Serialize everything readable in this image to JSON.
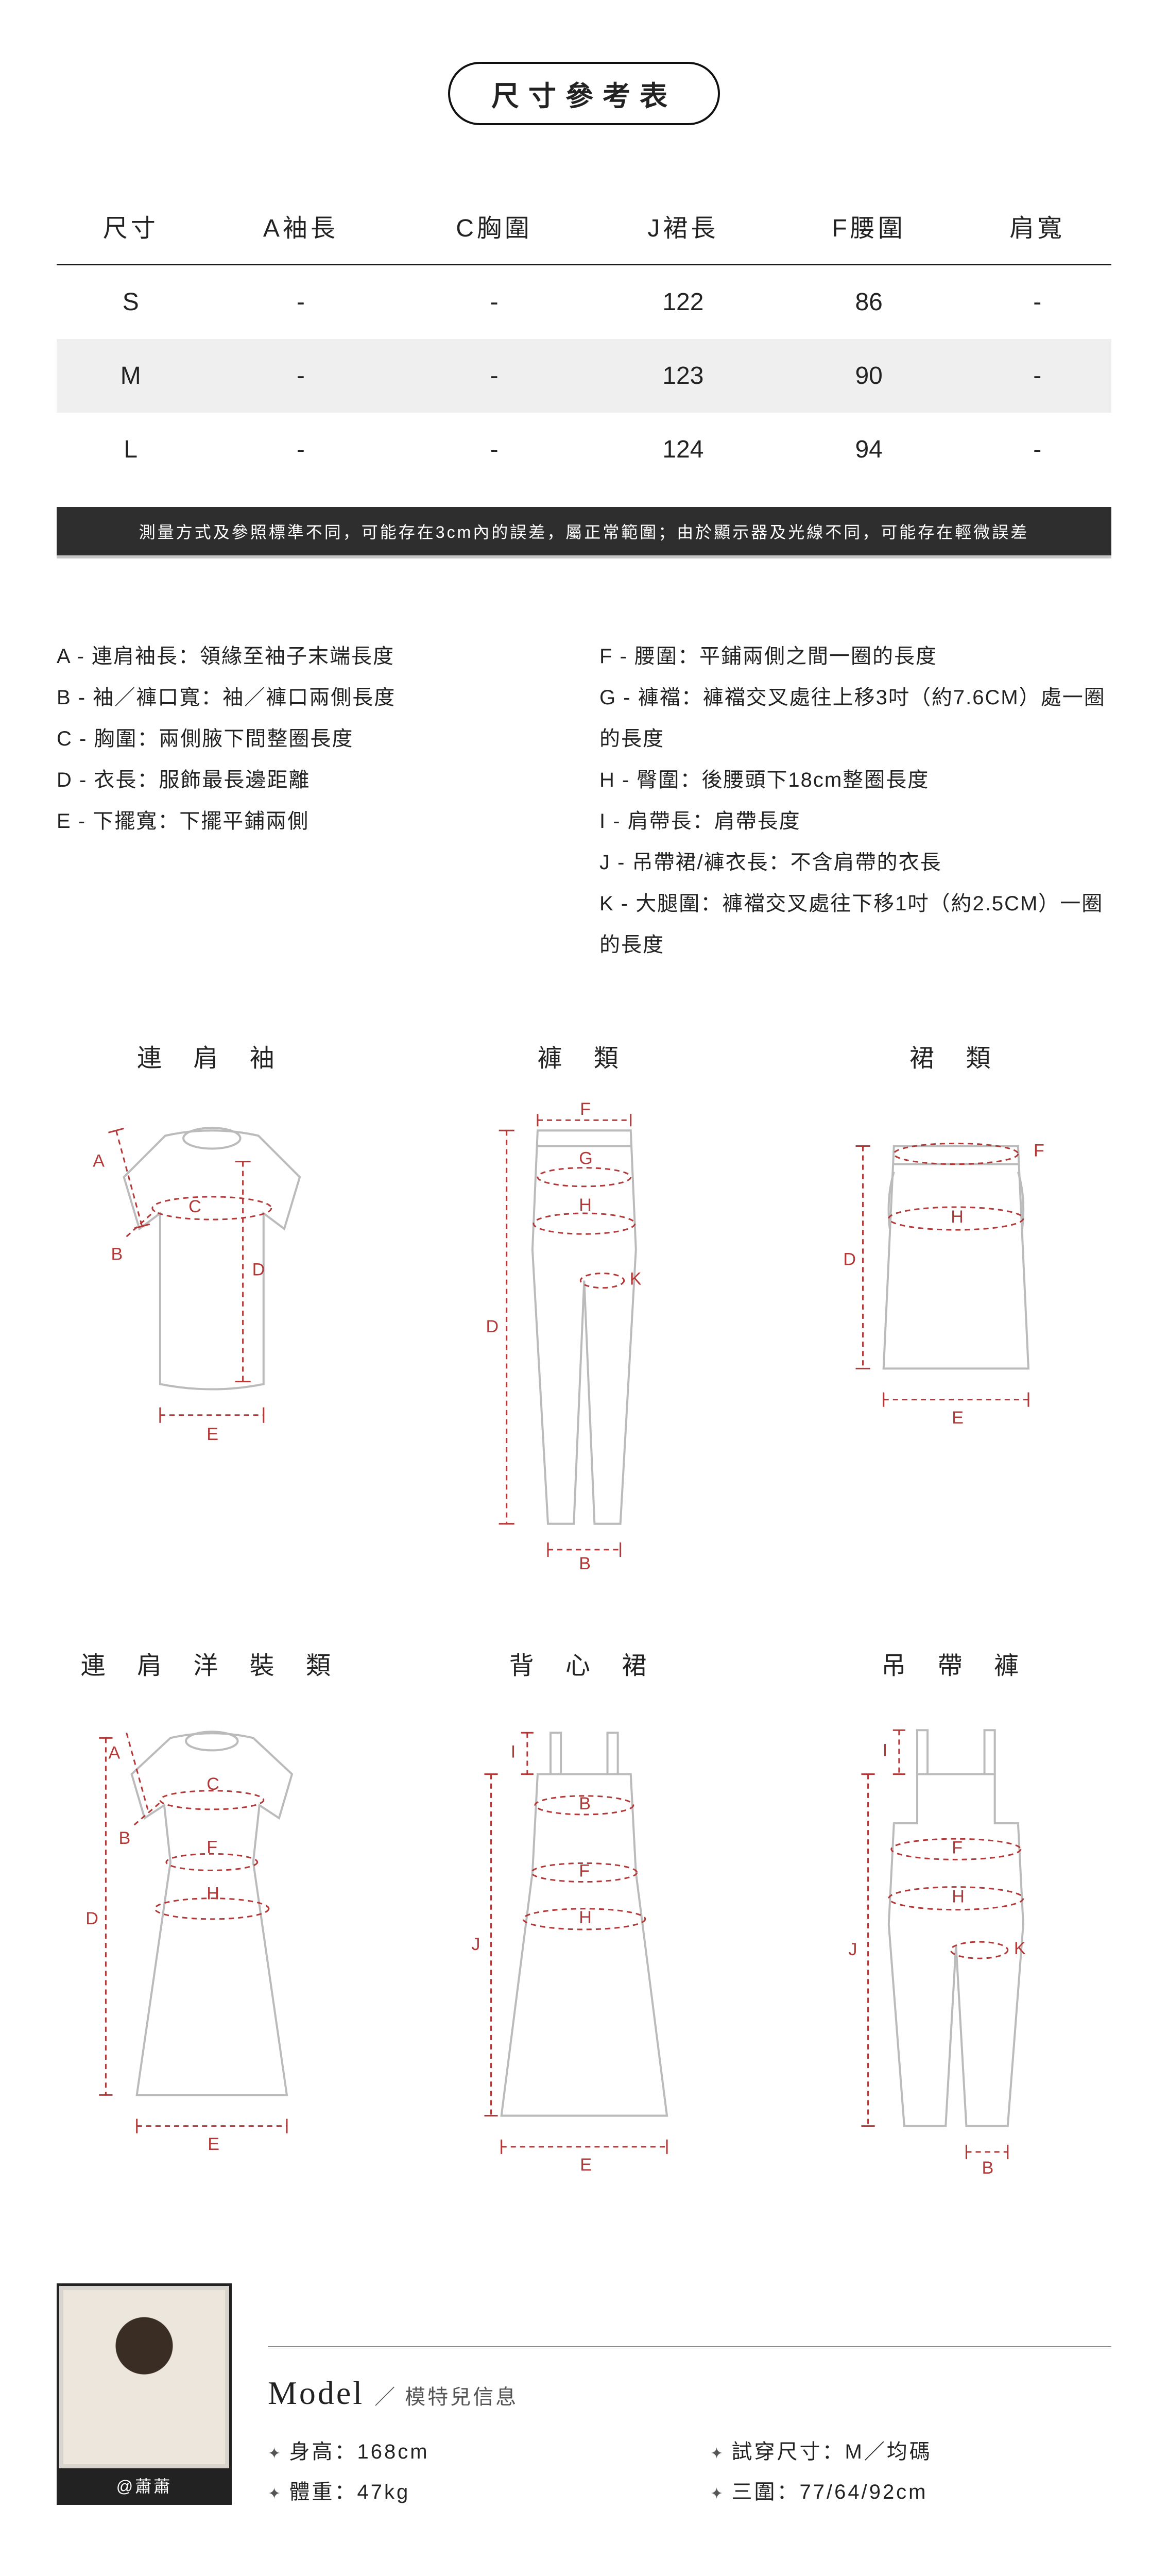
{
  "title": "尺寸參考表",
  "size_table": {
    "columns": [
      "尺寸",
      "A袖長",
      "C胸圍",
      "J裙長",
      "F腰圍",
      "肩寬"
    ],
    "rows": [
      {
        "cells": [
          "S",
          "-",
          "-",
          "122",
          "86",
          "-"
        ],
        "band": false
      },
      {
        "cells": [
          "M",
          "-",
          "-",
          "123",
          "90",
          "-"
        ],
        "band": true
      },
      {
        "cells": [
          "L",
          "-",
          "-",
          "124",
          "94",
          "-"
        ],
        "band": false
      }
    ]
  },
  "disclaimer": "測量方式及參照標準不同，可能存在3cm內的誤差，屬正常範圍；由於顯示器及光線不同，可能存在輕微誤差",
  "legend_left": [
    "A - 連肩袖長：領緣至袖子末端長度",
    "B - 袖／褲口寬：袖／褲口兩側長度",
    "C - 胸圍：兩側腋下間整圈長度",
    "D - 衣長：服飾最長邊距離",
    "E - 下擺寬：下擺平鋪兩側"
  ],
  "legend_right": [
    "F - 腰圍：平鋪兩側之間一圈的長度",
    "G - 褲襠：褲襠交叉處往上移3吋（約7.6CM）處一圈的長度",
    "H - 臀圍：後腰頭下18cm整圈長度",
    "I - 肩帶長：肩帶長度",
    "J - 吊帶裙/褲衣長：不含肩帶的衣長",
    "K - 大腿圍：褲襠交叉處往下移1吋（約2.5CM）一圈的長度"
  ],
  "diagrams": {
    "t0": "連 肩 袖",
    "t1": "褲 類",
    "t2": "裙 類",
    "t3": "連 肩 洋 裝 類",
    "t4": "背 心 裙",
    "t5": "吊 帶 褲"
  },
  "model": {
    "handle": "@蕭蕭",
    "heading_en": "Model",
    "heading_zh": "／ 模特兒信息",
    "stats": {
      "height": "身高：168cm",
      "weight": "體重：47kg",
      "trysize": "試穿尺寸：M／均碼",
      "measure": "三圍：77/64/92cm"
    }
  },
  "colors": {
    "accent": "#b33939"
  }
}
